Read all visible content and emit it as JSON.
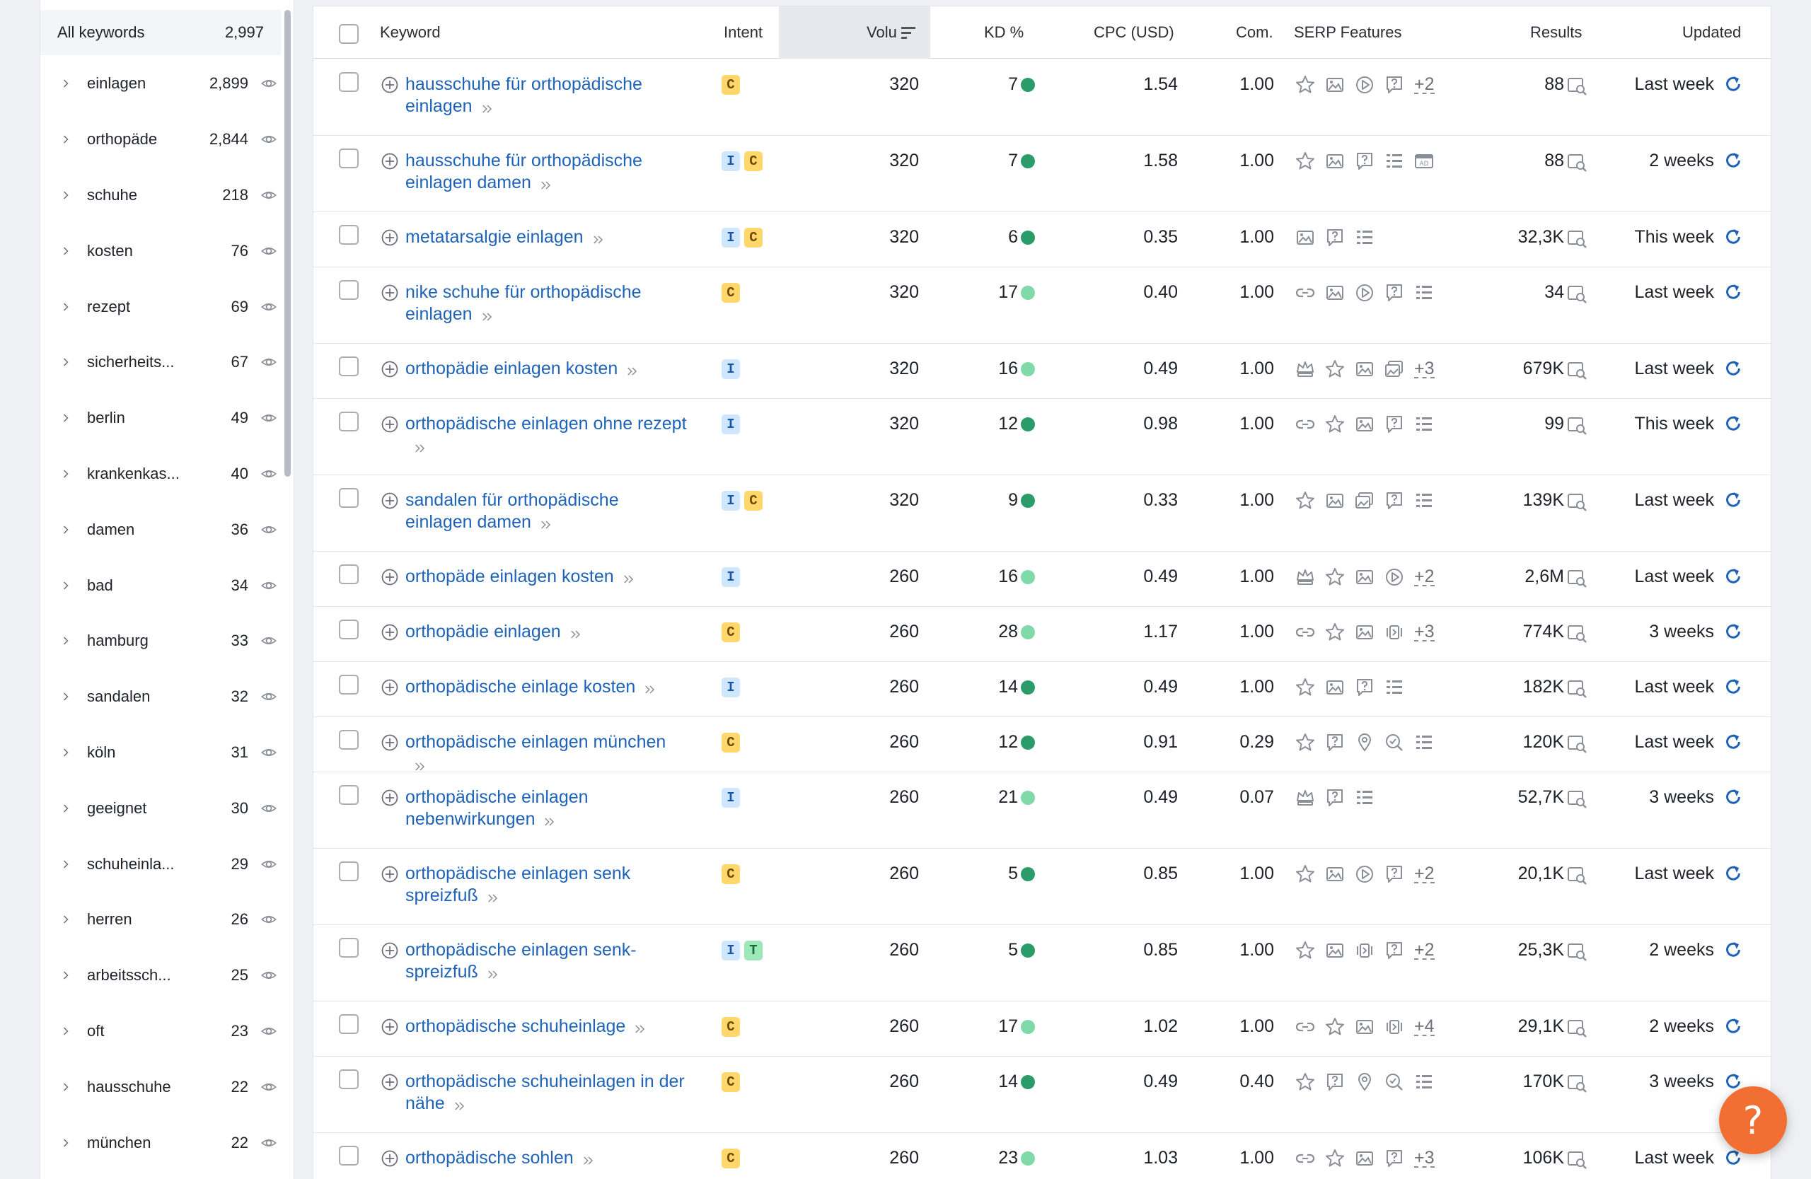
{
  "sidebar": {
    "header": {
      "label": "All keywords",
      "count": "2,997"
    },
    "groups": [
      {
        "label": "einlagen",
        "count": "2,899"
      },
      {
        "label": "orthopäde",
        "count": "2,844"
      },
      {
        "label": "schuhe",
        "count": "218"
      },
      {
        "label": "kosten",
        "count": "76"
      },
      {
        "label": "rezept",
        "count": "69"
      },
      {
        "label": "sicherheits...",
        "count": "67"
      },
      {
        "label": "berlin",
        "count": "49"
      },
      {
        "label": "krankenkas...",
        "count": "40"
      },
      {
        "label": "damen",
        "count": "36"
      },
      {
        "label": "bad",
        "count": "34"
      },
      {
        "label": "hamburg",
        "count": "33"
      },
      {
        "label": "sandalen",
        "count": "32"
      },
      {
        "label": "köln",
        "count": "31"
      },
      {
        "label": "geeignet",
        "count": "30"
      },
      {
        "label": "schuheinla...",
        "count": "29"
      },
      {
        "label": "herren",
        "count": "26"
      },
      {
        "label": "arbeitssch...",
        "count": "25"
      },
      {
        "label": "oft",
        "count": "23"
      },
      {
        "label": "hausschuhe",
        "count": "22"
      },
      {
        "label": "münchen",
        "count": "22"
      }
    ]
  },
  "table": {
    "columns": {
      "keyword": "Keyword",
      "intent": "Intent",
      "volume": "Volu",
      "kd": "KD %",
      "cpc": "CPC (USD)",
      "com": "Com.",
      "serp": "SERP Features",
      "results": "Results",
      "updated": "Updated"
    },
    "colors": {
      "kd_dark": "#2a9c6a",
      "kd_light": "#7fd9a8",
      "link": "#1e63b8",
      "refresh": "#1e63b8"
    },
    "rows": [
      {
        "keyword": "hausschuhe für orthopädische einlagen",
        "intents": [
          "C"
        ],
        "volume": "320",
        "kd": "7",
        "kd_level": "dark",
        "cpc": "1.54",
        "com": "1.00",
        "serp": [
          "star",
          "image",
          "video",
          "faq"
        ],
        "serp_more": "+2",
        "results": "88",
        "updated": "Last week"
      },
      {
        "keyword": "hausschuhe für orthopädische einlagen damen",
        "intents": [
          "I",
          "C"
        ],
        "volume": "320",
        "kd": "7",
        "kd_level": "dark",
        "cpc": "1.58",
        "com": "1.00",
        "serp": [
          "star",
          "image",
          "faq",
          "list",
          "ads"
        ],
        "serp_more": "",
        "results": "88",
        "updated": "2 weeks"
      },
      {
        "keyword": "metatarsalgie einlagen",
        "intents": [
          "I",
          "C"
        ],
        "volume": "320",
        "kd": "6",
        "kd_level": "dark",
        "cpc": "0.35",
        "com": "1.00",
        "serp": [
          "image",
          "faq",
          "list"
        ],
        "serp_more": "",
        "results": "32,3K",
        "updated": "This week"
      },
      {
        "keyword": "nike schuhe für orthopädische einlagen",
        "intents": [
          "C"
        ],
        "volume": "320",
        "kd": "17",
        "kd_level": "light",
        "cpc": "0.40",
        "com": "1.00",
        "serp": [
          "link",
          "image",
          "video",
          "faq",
          "list"
        ],
        "serp_more": "",
        "results": "34",
        "updated": "Last week"
      },
      {
        "keyword": "orthopädie einlagen kosten",
        "intents": [
          "I"
        ],
        "volume": "320",
        "kd": "16",
        "kd_level": "light",
        "cpc": "0.49",
        "com": "1.00",
        "serp": [
          "crown",
          "star",
          "image",
          "imagepack"
        ],
        "serp_more": "+3",
        "results": "679K",
        "updated": "Last week"
      },
      {
        "keyword": "orthopädische einlagen ohne rezept",
        "intents": [
          "I"
        ],
        "volume": "320",
        "kd": "12",
        "kd_level": "dark",
        "cpc": "0.98",
        "com": "1.00",
        "serp": [
          "link",
          "star",
          "image",
          "faq",
          "list"
        ],
        "serp_more": "",
        "results": "99",
        "updated": "This week"
      },
      {
        "keyword": "sandalen für orthopädische einlagen damen",
        "intents": [
          "I",
          "C"
        ],
        "volume": "320",
        "kd": "9",
        "kd_level": "dark",
        "cpc": "0.33",
        "com": "1.00",
        "serp": [
          "star",
          "image",
          "imagepack",
          "faq",
          "list"
        ],
        "serp_more": "",
        "results": "139K",
        "updated": "Last week"
      },
      {
        "keyword": "orthopäde einlagen kosten",
        "intents": [
          "I"
        ],
        "volume": "260",
        "kd": "16",
        "kd_level": "light",
        "cpc": "0.49",
        "com": "1.00",
        "serp": [
          "crown",
          "star",
          "image",
          "video"
        ],
        "serp_more": "+2",
        "results": "2,6M",
        "updated": "Last week"
      },
      {
        "keyword": "orthopädie einlagen",
        "intents": [
          "C"
        ],
        "volume": "260",
        "kd": "28",
        "kd_level": "light",
        "cpc": "1.17",
        "com": "1.00",
        "serp": [
          "link",
          "star",
          "image",
          "carousel"
        ],
        "serp_more": "+3",
        "results": "774K",
        "updated": "3 weeks"
      },
      {
        "keyword": "orthopädische einlage kosten",
        "intents": [
          "I"
        ],
        "volume": "260",
        "kd": "14",
        "kd_level": "dark",
        "cpc": "0.49",
        "com": "1.00",
        "serp": [
          "star",
          "image",
          "faq",
          "list"
        ],
        "serp_more": "",
        "results": "182K",
        "updated": "Last week"
      },
      {
        "keyword": "orthopädische einlagen münchen",
        "intents": [
          "C"
        ],
        "volume": "260",
        "kd": "12",
        "kd_level": "dark",
        "cpc": "0.91",
        "com": "0.29",
        "serp": [
          "star",
          "faq",
          "pin",
          "search",
          "list"
        ],
        "serp_more": "",
        "results": "120K",
        "updated": "Last week"
      },
      {
        "keyword": "orthopädische einlagen nebenwirkungen",
        "intents": [
          "I"
        ],
        "volume": "260",
        "kd": "21",
        "kd_level": "light",
        "cpc": "0.49",
        "com": "0.07",
        "serp": [
          "crown",
          "faq",
          "list"
        ],
        "serp_more": "",
        "results": "52,7K",
        "updated": "3 weeks"
      },
      {
        "keyword": "orthopädische einlagen senk spreizfuß",
        "intents": [
          "C"
        ],
        "volume": "260",
        "kd": "5",
        "kd_level": "dark",
        "cpc": "0.85",
        "com": "1.00",
        "serp": [
          "star",
          "image",
          "video",
          "faq"
        ],
        "serp_more": "+2",
        "results": "20,1K",
        "updated": "Last week"
      },
      {
        "keyword": "orthopädische einlagen senk-spreizfuß",
        "intents": [
          "I",
          "T"
        ],
        "volume": "260",
        "kd": "5",
        "kd_level": "dark",
        "cpc": "0.85",
        "com": "1.00",
        "serp": [
          "star",
          "image",
          "carousel",
          "faq"
        ],
        "serp_more": "+2",
        "results": "25,3K",
        "updated": "2 weeks"
      },
      {
        "keyword": "orthopädische schuheinlage",
        "intents": [
          "C"
        ],
        "volume": "260",
        "kd": "17",
        "kd_level": "light",
        "cpc": "1.02",
        "com": "1.00",
        "serp": [
          "link",
          "star",
          "image",
          "carousel"
        ],
        "serp_more": "+4",
        "results": "29,1K",
        "updated": "2 weeks"
      },
      {
        "keyword": "orthopädische schuheinlagen in der nähe",
        "intents": [
          "C"
        ],
        "volume": "260",
        "kd": "14",
        "kd_level": "dark",
        "cpc": "0.49",
        "com": "0.40",
        "serp": [
          "star",
          "faq",
          "pin",
          "search",
          "list"
        ],
        "serp_more": "",
        "results": "170K",
        "updated": "3 weeks"
      },
      {
        "keyword": "orthopädische sohlen",
        "intents": [
          "C"
        ],
        "volume": "260",
        "kd": "23",
        "kd_level": "light",
        "cpc": "1.03",
        "com": "1.00",
        "serp": [
          "link",
          "star",
          "image",
          "faq"
        ],
        "serp_more": "+3",
        "results": "106K",
        "updated": "Last week"
      }
    ]
  },
  "help": {
    "label": "?"
  }
}
